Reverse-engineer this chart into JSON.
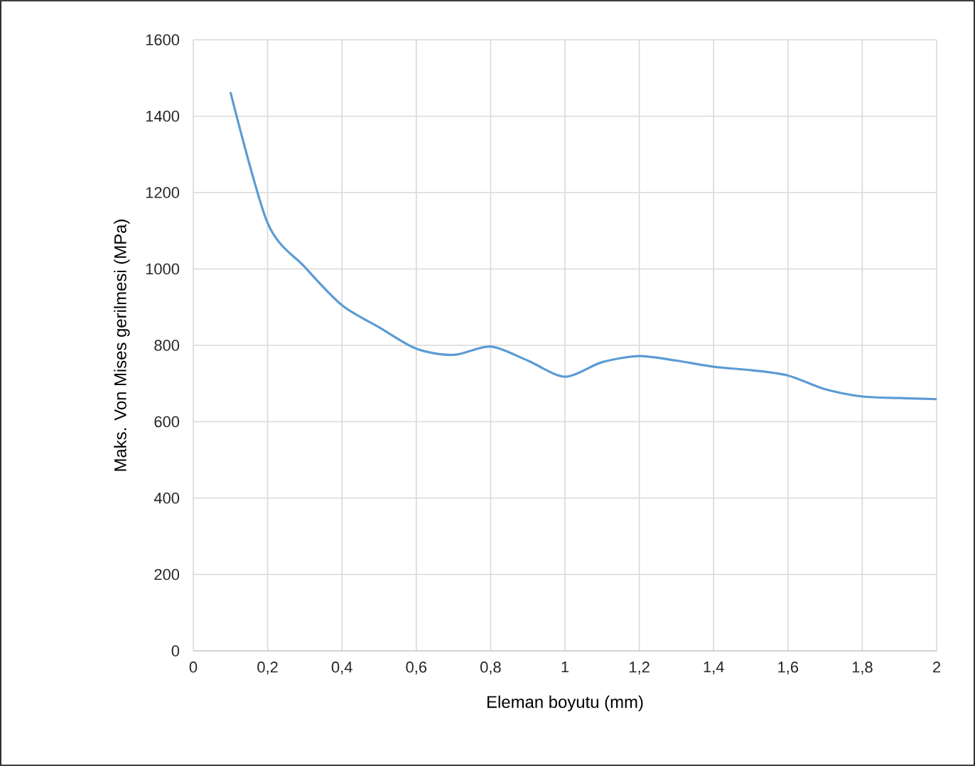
{
  "chart_data": {
    "type": "line",
    "xlabel": "Eleman boyutu (mm)",
    "ylabel": "Maks. Von Mises gerilmesi (MPa)",
    "x": [
      0.1,
      0.2,
      0.3,
      0.4,
      0.5,
      0.6,
      0.7,
      0.8,
      0.9,
      1.0,
      1.1,
      1.2,
      1.3,
      1.4,
      1.5,
      1.6,
      1.7,
      1.8,
      1.9,
      2.0
    ],
    "series": [
      {
        "color": "#5b9bd5",
        "values": [
          1463,
          1120,
          1005,
          905,
          847,
          791,
          775,
          797,
          760,
          718,
          756,
          772,
          760,
          744,
          735,
          721,
          685,
          666,
          662,
          659
        ]
      }
    ],
    "xlim": [
      0,
      2
    ],
    "ylim": [
      0,
      1600
    ],
    "xticks": [
      0,
      {
        "value": 0.2,
        "label": "0,2"
      },
      {
        "value": 0.4,
        "label": "0,4"
      },
      {
        "value": 0.6,
        "label": "0,6"
      },
      {
        "value": 0.8,
        "label": "0,8"
      },
      1,
      {
        "value": 1.2,
        "label": "1,2"
      },
      {
        "value": 1.4,
        "label": "1,4"
      },
      {
        "value": 1.6,
        "label": "1,6"
      },
      {
        "value": 1.8,
        "label": "1,8"
      },
      2
    ],
    "yticks": [
      0,
      200,
      400,
      600,
      800,
      1000,
      1200,
      1400,
      1600
    ],
    "grid": true,
    "marker": "none",
    "line_style": "solid"
  }
}
